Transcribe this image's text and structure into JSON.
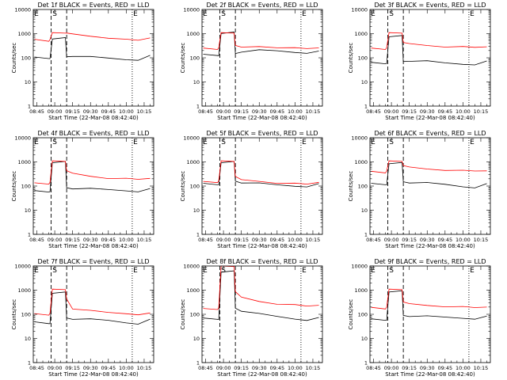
{
  "figure": {
    "tick_labels_x": [
      "08:45",
      "09:00",
      "09:15",
      "09:30",
      "09:45",
      "10:00",
      "10:15"
    ],
    "tick_labels_y": [
      "1",
      "10",
      "100",
      "1000",
      "10000"
    ]
  },
  "chart_data": [
    {
      "type": "line",
      "panel": "det1f",
      "title": "Det 1f BLACK = Events, RED = LLD",
      "xlabel": "Start Time (22-Mar-08 08:42:40)",
      "ylabel": "Counts/sec",
      "x_ticks": [
        "08:45",
        "09:00",
        "09:15",
        "09:30",
        "09:45",
        "10:00",
        "10:15"
      ],
      "y_scale": "log",
      "ylim": [
        1,
        10000
      ],
      "time_marks": [
        "E",
        "S",
        "E"
      ],
      "x": [
        "08:43",
        "08:55",
        "08:56",
        "08:58",
        "09:09",
        "09:10",
        "09:15",
        "09:30",
        "09:45",
        "10:00",
        "10:10",
        "10:20"
      ],
      "series": [
        {
          "color": "#000000",
          "values": [
            100,
            90,
            95,
            650,
            650,
            110,
            120,
            105,
            95,
            85,
            85,
            120
          ]
        },
        {
          "color": "#ff0000",
          "values": [
            600,
            520,
            540,
            1100,
            1100,
            980,
            950,
            800,
            700,
            560,
            530,
            700
          ]
        }
      ]
    },
    {
      "type": "line",
      "panel": "det2f",
      "title": "Det 2f BLACK = Events, RED = LLD",
      "xlabel": "Start Time (22-Mar-08 08:42:40)",
      "ylabel": "Counts/sec",
      "x_ticks": [
        "08:45",
        "09:00",
        "09:15",
        "09:30",
        "09:45",
        "10:00",
        "10:15"
      ],
      "y_scale": "log",
      "ylim": [
        1,
        10000
      ],
      "time_marks": [
        "E",
        "S",
        "E"
      ],
      "x": [
        "08:43",
        "08:55",
        "08:56",
        "08:58",
        "09:09",
        "09:10",
        "09:15",
        "09:30",
        "09:45",
        "10:00",
        "10:10",
        "10:20"
      ],
      "series": [
        {
          "color": "#000000",
          "values": [
            130,
            120,
            125,
            1100,
            1100,
            150,
            180,
            200,
            190,
            170,
            165,
            180
          ]
        },
        {
          "color": "#ff0000",
          "values": [
            260,
            240,
            250,
            1100,
            1100,
            300,
            270,
            300,
            280,
            250,
            240,
            270
          ]
        }
      ]
    },
    {
      "type": "line",
      "panel": "det3f",
      "title": "Det 3f BLACK = Events, RED = LLD",
      "xlabel": "Start Time (22-Mar-08 08:42:40)",
      "ylabel": "Counts/sec",
      "x_ticks": [
        "08:45",
        "09:00",
        "09:15",
        "09:30",
        "09:45",
        "10:00",
        "10:15"
      ],
      "y_scale": "log",
      "ylim": [
        1,
        10000
      ],
      "time_marks": [
        "E",
        "S",
        "E"
      ],
      "x": [
        "08:43",
        "08:55",
        "08:56",
        "08:58",
        "09:09",
        "09:10",
        "09:15",
        "09:30",
        "09:45",
        "10:00",
        "10:10",
        "10:20"
      ],
      "series": [
        {
          "color": "#000000",
          "values": [
            60,
            55,
            60,
            800,
            800,
            70,
            75,
            70,
            60,
            55,
            55,
            70
          ]
        },
        {
          "color": "#ff0000",
          "values": [
            260,
            240,
            250,
            1100,
            1100,
            400,
            380,
            330,
            300,
            280,
            270,
            300
          ]
        }
      ]
    },
    {
      "type": "line",
      "panel": "det4f",
      "title": "Det 4f BLACK = Events, RED = LLD",
      "xlabel": "Start Time (22-Mar-08 08:42:40)",
      "ylabel": "Counts/sec",
      "x_ticks": [
        "08:45",
        "09:00",
        "09:15",
        "09:30",
        "09:45",
        "10:00",
        "10:15"
      ],
      "y_scale": "log",
      "ylim": [
        1,
        10000
      ],
      "time_marks": [
        "E",
        "S",
        "E"
      ],
      "x": [
        "08:43",
        "08:55",
        "08:56",
        "08:58",
        "09:09",
        "09:10",
        "09:15",
        "09:30",
        "09:45",
        "10:00",
        "10:10",
        "10:20"
      ],
      "series": [
        {
          "color": "#000000",
          "values": [
            60,
            55,
            60,
            1000,
            1000,
            85,
            80,
            75,
            70,
            65,
            62,
            75
          ]
        },
        {
          "color": "#ff0000",
          "values": [
            140,
            130,
            135,
            1100,
            1100,
            400,
            330,
            260,
            220,
            200,
            190,
            220
          ]
        }
      ]
    },
    {
      "type": "line",
      "panel": "det5f",
      "title": "Det 5f BLACK = Events, RED = LLD",
      "xlabel": "Start Time (22-Mar-08 08:42:40)",
      "ylabel": "Counts/sec",
      "x_ticks": [
        "08:45",
        "09:00",
        "09:15",
        "09:30",
        "09:45",
        "10:00",
        "10:15"
      ],
      "y_scale": "log",
      "ylim": [
        1,
        10000
      ],
      "time_marks": [
        "E",
        "S",
        "E"
      ],
      "x": [
        "08:43",
        "08:55",
        "08:56",
        "08:58",
        "09:09",
        "09:10",
        "09:15",
        "09:30",
        "09:45",
        "10:00",
        "10:10",
        "10:20"
      ],
      "series": [
        {
          "color": "#000000",
          "values": [
            120,
            110,
            115,
            1000,
            1000,
            160,
            140,
            125,
            110,
            100,
            100,
            120
          ]
        },
        {
          "color": "#ff0000",
          "values": [
            160,
            150,
            155,
            1100,
            1100,
            230,
            180,
            160,
            140,
            125,
            120,
            150
          ]
        }
      ]
    },
    {
      "type": "line",
      "panel": "det6f",
      "title": "Det 6f BLACK = Events, RED = LLD",
      "xlabel": "Start Time (22-Mar-08 08:42:40)",
      "ylabel": "Counts/sec",
      "x_ticks": [
        "08:45",
        "09:00",
        "09:15",
        "09:30",
        "09:45",
        "10:00",
        "10:15"
      ],
      "y_scale": "log",
      "ylim": [
        1,
        10000
      ],
      "time_marks": [
        "E",
        "S",
        "E"
      ],
      "x": [
        "08:43",
        "08:55",
        "08:56",
        "08:58",
        "09:09",
        "09:10",
        "09:15",
        "09:30",
        "09:45",
        "10:00",
        "10:10",
        "10:20"
      ],
      "series": [
        {
          "color": "#000000",
          "values": [
            120,
            110,
            115,
            900,
            900,
            150,
            140,
            130,
            115,
            95,
            90,
            120
          ]
        },
        {
          "color": "#ff0000",
          "values": [
            420,
            380,
            400,
            1100,
            1100,
            650,
            600,
            520,
            480,
            430,
            420,
            450
          ]
        }
      ]
    },
    {
      "type": "line",
      "panel": "det7f",
      "title": "Det 7f BLACK = Events, RED = LLD",
      "xlabel": "Start Time (22-Mar-08 08:42:40)",
      "ylabel": "Counts/sec",
      "x_ticks": [
        "08:45",
        "09:00",
        "09:15",
        "09:30",
        "09:45",
        "10:00",
        "10:15"
      ],
      "y_scale": "log",
      "ylim": [
        1,
        10000
      ],
      "time_marks": [
        "E",
        "S",
        "E"
      ],
      "x": [
        "08:43",
        "08:55",
        "08:56",
        "08:58",
        "09:09",
        "09:10",
        "09:15",
        "09:30",
        "09:45",
        "10:00",
        "10:10",
        "10:20"
      ],
      "series": [
        {
          "color": "#000000",
          "values": [
            45,
            40,
            42,
            800,
            800,
            70,
            65,
            60,
            55,
            45,
            42,
            60
          ]
        },
        {
          "color": "#ff0000",
          "values": [
            110,
            100,
            105,
            1100,
            1100,
            400,
            160,
            150,
            130,
            100,
            95,
            120
          ]
        }
      ]
    },
    {
      "type": "line",
      "panel": "det8f",
      "title": "Det 8f BLACK = Events, RED = LLD",
      "xlabel": "Start Time (22-Mar-08 08:42:40)",
      "ylabel": "Counts/sec",
      "x_ticks": [
        "08:45",
        "09:00",
        "09:15",
        "09:30",
        "09:45",
        "10:00",
        "10:15"
      ],
      "y_scale": "log",
      "ylim": [
        1,
        10000
      ],
      "time_marks": [
        "E",
        "S",
        "E"
      ],
      "x": [
        "08:43",
        "08:55",
        "08:56",
        "08:58",
        "09:09",
        "09:10",
        "09:15",
        "09:30",
        "09:45",
        "10:00",
        "10:10",
        "10:20"
      ],
      "series": [
        {
          "color": "#000000",
          "values": [
            65,
            60,
            62,
            6000,
            6000,
            180,
            140,
            100,
            80,
            65,
            60,
            70
          ]
        },
        {
          "color": "#ff0000",
          "values": [
            180,
            170,
            175,
            10000,
            10000,
            800,
            500,
            350,
            280,
            240,
            220,
            250
          ]
        }
      ]
    },
    {
      "type": "line",
      "panel": "det9f",
      "title": "Det 9f BLACK = Events, RED = LLD",
      "xlabel": "Start Time (22-Mar-08 08:42:40)",
      "ylabel": "Counts/sec",
      "x_ticks": [
        "08:45",
        "09:00",
        "09:15",
        "09:30",
        "09:45",
        "10:00",
        "10:15"
      ],
      "y_scale": "log",
      "ylim": [
        1,
        10000
      ],
      "time_marks": [
        "E",
        "S",
        "E"
      ],
      "x": [
        "08:43",
        "08:55",
        "08:56",
        "08:58",
        "09:09",
        "09:10",
        "09:15",
        "09:30",
        "09:45",
        "10:00",
        "10:10",
        "10:20"
      ],
      "series": [
        {
          "color": "#000000",
          "values": [
            60,
            55,
            58,
            900,
            900,
            90,
            85,
            80,
            75,
            70,
            68,
            80
          ]
        },
        {
          "color": "#ff0000",
          "values": [
            200,
            180,
            190,
            1100,
            1100,
            300,
            270,
            240,
            220,
            200,
            190,
            210
          ]
        }
      ]
    }
  ]
}
